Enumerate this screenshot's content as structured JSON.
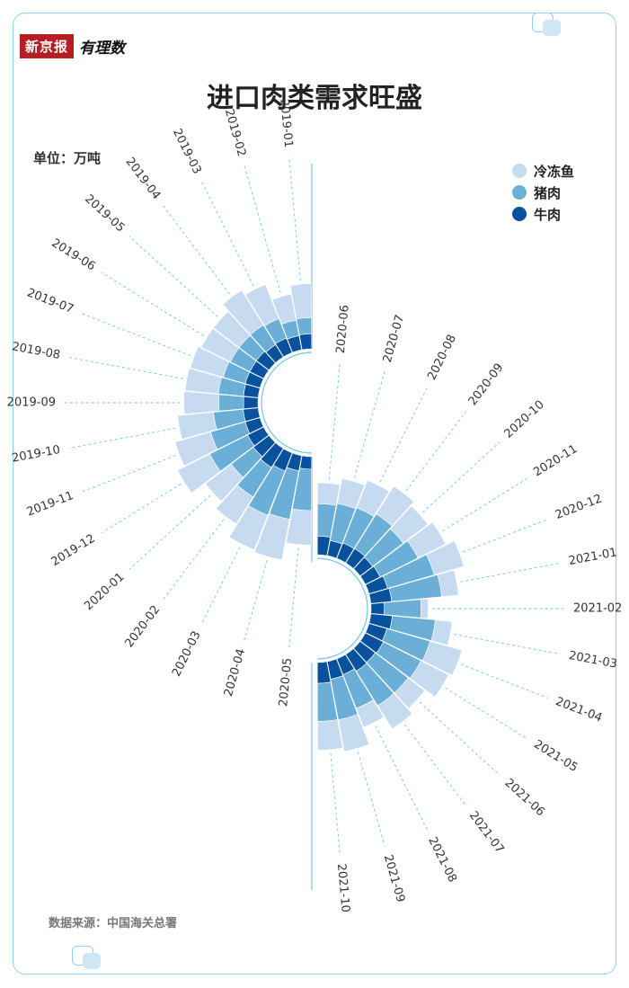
{
  "brand": {
    "logo_text": "新京报",
    "logo_script": "有理数"
  },
  "title": "进口肉类需求旺盛",
  "unit_label": "单位：万吨",
  "source": "数据来源：中国海关总署",
  "colors": {
    "fish": "#c6dbef",
    "pork": "#6baed6",
    "beef": "#08519c",
    "guide": "#6ec6e6"
  },
  "chart_data": {
    "type": "radial-stacked-bar",
    "series": [
      {
        "name": "冷冻鱼",
        "color": "#c6dbef"
      },
      {
        "name": "猪肉",
        "color": "#6baed6"
      },
      {
        "name": "牛肉",
        "color": "#08519c"
      }
    ],
    "categories": [
      "2019-01",
      "2019-02",
      "2019-03",
      "2019-04",
      "2019-05",
      "2019-06",
      "2019-07",
      "2019-08",
      "2019-09",
      "2019-10",
      "2019-11",
      "2019-12",
      "2020-01",
      "2020-02",
      "2020-03",
      "2020-04",
      "2020-05",
      "2020-06",
      "2020-07",
      "2020-08",
      "2020-09",
      "2020-10",
      "2020-11",
      "2020-12",
      "2021-01",
      "2021-02",
      "2021-03",
      "2021-04",
      "2021-05",
      "2021-06",
      "2021-07",
      "2021-08",
      "2021-09",
      "2021-10"
    ],
    "beef": [
      4.2,
      4.0,
      4.3,
      4.0,
      4.4,
      4.3,
      4.3,
      4.1,
      4.0,
      4.2,
      4.3,
      5.0,
      5.4,
      6.2,
      5.4,
      4.3,
      3.5,
      5.2,
      4.3,
      4.6,
      4.7,
      4.4,
      4.6,
      5.4,
      5.8,
      3.7,
      6.0,
      5.2,
      5.6,
      5.3,
      5.5,
      4.7,
      5.0,
      5.8
    ],
    "pork": [
      4.5,
      4.4,
      5.8,
      6.5,
      6.0,
      6.1,
      6.4,
      7.0,
      6.9,
      8.3,
      10.0,
      11.8,
      7.8,
      9.7,
      13.2,
      13.7,
      11.5,
      9.0,
      10.5,
      10.5,
      11.3,
      10.7,
      11.8,
      13.5,
      14.0,
      10.2,
      12.0,
      12.5,
      11.7,
      11.5,
      11.3,
      10.1,
      11.5,
      10.6
    ],
    "fish": [
      9.4,
      7.3,
      10.2,
      11.4,
      9.0,
      9.0,
      9.5,
      9.3,
      9.7,
      10.0,
      10.3,
      10.0,
      9.0,
      8.8,
      10.3,
      11.5,
      9.6,
      5.8,
      7.0,
      8.2,
      9.1,
      8.6,
      8.6,
      8.6,
      4.7,
      2.0,
      4.7,
      9.2,
      8.6,
      5.8,
      7.6,
      5.6,
      8.9,
      8.0
    ]
  }
}
